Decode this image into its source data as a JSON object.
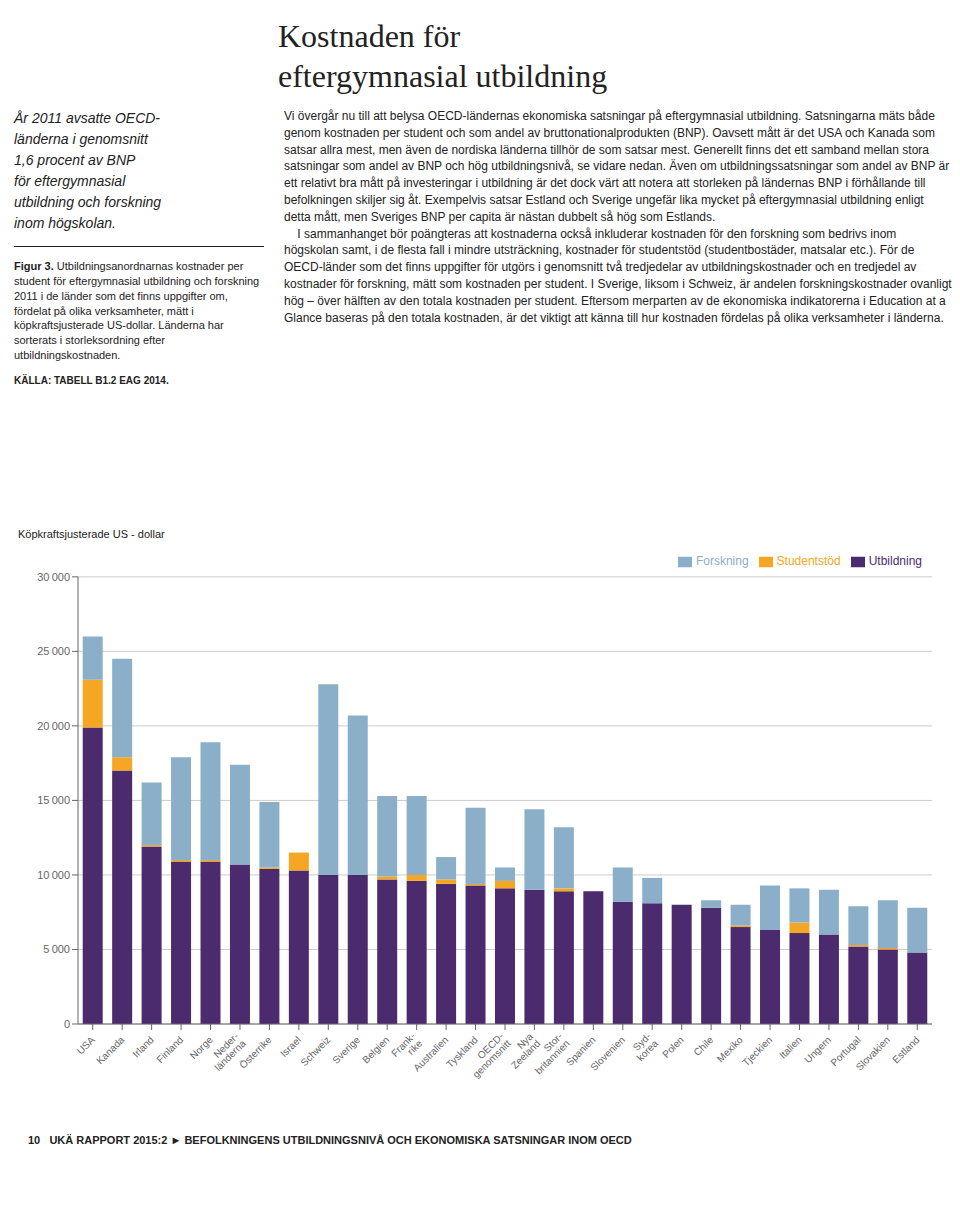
{
  "chart_data": {
    "type": "bar",
    "stacked": true,
    "title": "Kostnaden för\neftergymnasial utbildning",
    "ylabel": "Köpkraftsjusterade US - dollar",
    "annotations": [
      "År 2011 avsatte OECD-\nländerna i genomsnitt\n1,6 procent av BNP\nför eftergymnasial\nutbildning och forskning\ninom högskolan.",
      "Figur 3.",
      " Utbildningsanordnarnas kostnader per student för eftergymnasial utbildning och forskning 2011 i de länder som det finns uppgifter om, fördelat på olika verksamheter, mätt i köpkraftsjusterade US-dollar. Länderna har sorterats i storleksordning efter utbildningskostnaden.",
      "KÄLLA: TABELL B1.2 EAG 2014.",
      "Vi övergår nu till att belysa OECD-ländernas ekonomiska satsningar på eftergymnasial utbildning. Satsningarna mäts både genom kostnaden per student och som andel av bruttonationalprodukten (BNP). Oavsett mått är det USA och Kanada som satsar allra mest, men även de nordiska länderna tillhör de som satsar mest. Generellt finns det ett samband mellan stora satsningar som andel av BNP och hög utbildningsnivå, se vidare nedan. Även om utbildningssatsningar som andel av BNP är ett relativt bra mått på investeringar i utbildning är det dock värt att notera att storleken på ländernas BNP i förhållande till befolkningen skiljer sig åt. Exempelvis satsar Estland och Sverige ungefär lika mycket på eftergymnasial utbildning enligt detta mått, men Sveriges BNP per capita är nästan dubbelt så hög som Estlands.\n\tI sammanhanget bör poängteras att kostnaderna också inkluderar kostnaden för den forskning som bedrivs inom högskolan samt, i de flesta fall i mindre utsträckning, kostnader för studentstöd (studentbostäder, matsalar etc.). För de OECD-länder som det finns uppgifter för utgörs i genomsnitt två tredjedelar av utbildningskostnader och en tredjedel av kostnader för forskning, mätt som kostnaden per student. I Sverige, liksom i Schweiz, är andelen forskningskostnader ovanligt hög – över hälften av den totala kostnaden per student. Eftersom merparten av de ekonomiska indikatorerna i Education at a Glance baseras på den totala kostnaden, är det viktigt att känna till hur kostnaden fördelas på olika verksamheter i länderna.",
      "10   UKÄ RAPPORT 2015:2 ► BEFOLKNINGENS UTBILDNINGSNIVÅ OCH EKONOMISKA SATSNINGAR INOM OECD"
    ],
    "categories": [
      "USA",
      "Kanada",
      "Irland",
      "Finland",
      "Norge",
      "Neder-\nländerna",
      "Österrike",
      "Israel",
      "Schweiz",
      "Sverige",
      "Belgien",
      "Frank-\nrike",
      "Australien",
      "Tyskland",
      "OECD-\ngenomsnitt",
      "Nya\nZeeland",
      "Stor-\nbritannien",
      "Spanien",
      "Slovenien",
      "Syd-\nkorea",
      "Polen",
      "Chile",
      "Mexiko",
      "Tjeckien",
      "Italien",
      "Ungern",
      "Portugal",
      "Slovakien",
      "Estland"
    ],
    "series": [
      {
        "name": "Utbildning",
        "color": "#4B2A6E",
        "values": [
          19900,
          17000,
          11900,
          10900,
          10900,
          10700,
          10400,
          10300,
          10000,
          10000,
          9700,
          9600,
          9400,
          9300,
          9100,
          9000,
          8900,
          8900,
          8200,
          8100,
          8000,
          7800,
          6500,
          6300,
          6100,
          6000,
          5200,
          5000,
          4800
        ]
      },
      {
        "name": "Studentstöd",
        "color": "#F5A623",
        "values": [
          3200,
          900,
          100,
          100,
          100,
          0,
          100,
          1200,
          0,
          0,
          200,
          400,
          300,
          100,
          500,
          0,
          200,
          0,
          0,
          0,
          0,
          0,
          100,
          0,
          700,
          0,
          100,
          100,
          0
        ]
      },
      {
        "name": "Forskning",
        "color": "#8BAFC8",
        "values": [
          2900,
          6600,
          4200,
          6900,
          7900,
          6700,
          4400,
          0,
          12800,
          10700,
          5400,
          5300,
          1500,
          5100,
          900,
          5400,
          4100,
          0,
          2300,
          1700,
          0,
          500,
          1400,
          3000,
          2300,
          3000,
          2600,
          3200,
          3000
        ]
      }
    ],
    "ylim": [
      0,
      30000
    ],
    "yticks": [
      0,
      {
        "value": 5000,
        "label": "5 000"
      },
      {
        "value": 10000,
        "label": "10 000"
      },
      {
        "value": 15000,
        "label": "15 000"
      },
      {
        "value": 20000,
        "label": "20 000"
      },
      {
        "value": 25000,
        "label": "25 000"
      },
      {
        "value": 30000,
        "label": "30 000"
      }
    ],
    "grid": true,
    "legend": "upper right"
  }
}
